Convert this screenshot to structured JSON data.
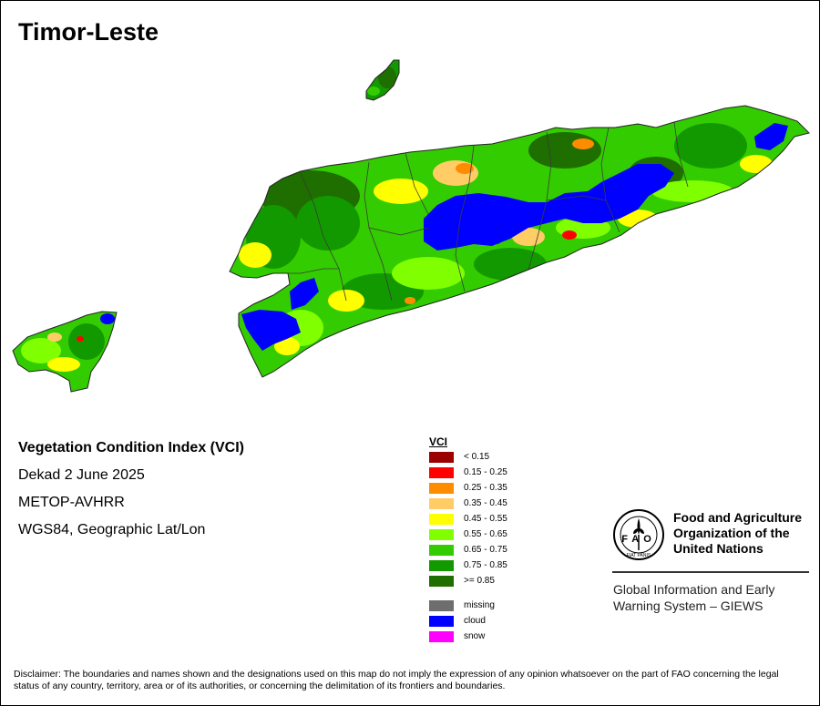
{
  "map": {
    "title": "Timor-Leste",
    "info": {
      "index_name": "Vegetation Condition Index (VCI)",
      "period": "Dekad 2 June 2025",
      "sensor": "METOP-AVHRR",
      "projection": "WGS84, Geographic Lat/Lon"
    },
    "legend": {
      "title": "VCI",
      "classes": [
        {
          "label": "< 0.15",
          "color": "#9b0000"
        },
        {
          "label": "0.15 - 0.25",
          "color": "#ff0000"
        },
        {
          "label": "0.25 - 0.35",
          "color": "#ff8c00"
        },
        {
          "label": "0.35 - 0.45",
          "color": "#ffcc66"
        },
        {
          "label": "0.45 - 0.55",
          "color": "#ffff00"
        },
        {
          "label": "0.55 - 0.65",
          "color": "#80ff00"
        },
        {
          "label": "0.65 - 0.75",
          "color": "#33cc00"
        },
        {
          "label": "0.75 - 0.85",
          "color": "#129900"
        },
        {
          "label": ">= 0.85",
          "color": "#1e6e00"
        }
      ],
      "special": [
        {
          "label": "missing",
          "color": "#6e6e6e"
        },
        {
          "label": "cloud",
          "color": "#0000ff"
        },
        {
          "label": "snow",
          "color": "#ff00ff"
        }
      ]
    },
    "organization": {
      "emblem": "fao-emblem",
      "name_lines": [
        "Food and Agriculture",
        "Organization of the",
        "United Nations"
      ],
      "emblem_text": {
        "top": "FAO",
        "motto": "FIAT PANIS"
      },
      "program_lines": [
        "Global Information and Early",
        "Warning System – GIEWS"
      ]
    },
    "disclaimer": "Disclaimer: The boundaries and names shown and the designations used on this map do not imply the expression of any opinion whatsoever on the part of FAO concerning the legal status of any country, territory, area or of its authorities, or concerning the delimitation of its frontiers and boundaries."
  }
}
